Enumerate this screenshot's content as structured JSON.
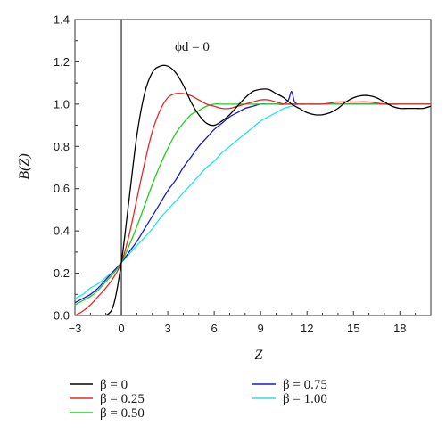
{
  "chart_data": {
    "type": "line",
    "title": "",
    "xlabel": "Z",
    "ylabel": "B(Z)",
    "xlim": [
      -3,
      20
    ],
    "ylim": [
      0,
      1.4
    ],
    "xticks": [
      "−3",
      "0",
      "3",
      "6",
      "9",
      "12",
      "15",
      "18"
    ],
    "yticks": [
      "0.0",
      "0.2",
      "0.4",
      "0.6",
      "0.8",
      "1.0",
      "1.2",
      "1.4"
    ],
    "annotation": "ϕd = 0",
    "vertical_line_x": 0,
    "grid": false,
    "legend_position": "bottom",
    "series": [
      {
        "name": "β = 0",
        "color": "#000000",
        "x": [
          -3,
          -2.5,
          -2,
          -1.5,
          -1,
          -0.5,
          0,
          0.5,
          1,
          1.5,
          2,
          2.5,
          3,
          3.5,
          4,
          4.5,
          5,
          5.5,
          6,
          6.5,
          7,
          7.5,
          8,
          8.5,
          9,
          9.5,
          10,
          10.5,
          11,
          11.5,
          12,
          12.5,
          13,
          13.5,
          14,
          14.5,
          15,
          15.5,
          16,
          16.5,
          17,
          17.5,
          18,
          18.5,
          19,
          19.5,
          20
        ],
        "y": [
          0.0,
          0.0,
          0.0,
          0.0,
          0.0,
          0.05,
          0.25,
          0.55,
          0.85,
          1.05,
          1.15,
          1.18,
          1.18,
          1.15,
          1.09,
          1.01,
          0.95,
          0.91,
          0.9,
          0.92,
          0.95,
          0.99,
          1.03,
          1.06,
          1.07,
          1.07,
          1.05,
          1.03,
          1.0,
          0.98,
          0.96,
          0.95,
          0.95,
          0.96,
          0.98,
          1.01,
          1.03,
          1.04,
          1.04,
          1.03,
          1.01,
          0.99,
          0.98,
          0.98,
          0.98,
          0.98,
          0.99
        ]
      },
      {
        "name": "β = 0.25",
        "color": "#e8262a",
        "x": [
          -3,
          -2.5,
          -2,
          -1.5,
          -1,
          -0.5,
          0,
          0.5,
          1,
          1.5,
          2,
          2.5,
          3,
          3.5,
          4,
          4.5,
          5,
          5.5,
          6,
          6.5,
          7,
          7.5,
          8,
          8.5,
          9,
          9.5,
          10,
          10.5,
          11,
          11.5,
          12,
          13,
          14,
          15,
          16,
          17,
          18,
          19,
          20
        ],
        "y": [
          0.0,
          0.02,
          0.05,
          0.09,
          0.13,
          0.18,
          0.25,
          0.38,
          0.55,
          0.72,
          0.87,
          0.97,
          1.03,
          1.05,
          1.05,
          1.04,
          1.02,
          1.0,
          0.99,
          0.98,
          0.98,
          0.99,
          1.0,
          1.01,
          1.02,
          1.02,
          1.01,
          1.0,
          1.0,
          1.0,
          1.0,
          1.0,
          1.01,
          1.01,
          1.01,
          1.0,
          1.0,
          1.0,
          1.0
        ]
      },
      {
        "name": "β = 0.50",
        "color": "#22cc22",
        "x": [
          -3,
          -2.5,
          -2,
          -1.5,
          -1,
          -0.5,
          0,
          0.5,
          1,
          1.5,
          2,
          2.5,
          3,
          3.5,
          4,
          4.5,
          5,
          5.5,
          6,
          6.5,
          7,
          7.5,
          8,
          9,
          10,
          11,
          12,
          14,
          16,
          18,
          20
        ],
        "y": [
          0.05,
          0.07,
          0.09,
          0.12,
          0.16,
          0.2,
          0.25,
          0.33,
          0.42,
          0.52,
          0.62,
          0.71,
          0.79,
          0.86,
          0.91,
          0.95,
          0.97,
          0.99,
          1.0,
          1.0,
          1.0,
          1.0,
          1.0,
          1.0,
          1.0,
          1.0,
          1.0,
          1.0,
          1.0,
          1.0,
          1.0
        ]
      },
      {
        "name": "β = 0.75",
        "color": "#1a1acc",
        "x": [
          -3,
          -2.5,
          -2,
          -1.5,
          -1,
          -0.5,
          0,
          0.5,
          1,
          1.5,
          2,
          2.5,
          3,
          3.5,
          4,
          4.5,
          5,
          5.5,
          6,
          6.5,
          7,
          7.5,
          8,
          8.5,
          9,
          9.5,
          10,
          10.5,
          10.8,
          11,
          11.2,
          11.5,
          12,
          13,
          14,
          16,
          18,
          20
        ],
        "y": [
          0.06,
          0.08,
          0.1,
          0.13,
          0.17,
          0.21,
          0.25,
          0.3,
          0.35,
          0.41,
          0.47,
          0.53,
          0.59,
          0.64,
          0.7,
          0.75,
          0.8,
          0.84,
          0.88,
          0.91,
          0.94,
          0.96,
          0.98,
          0.99,
          1.0,
          1.0,
          1.0,
          1.0,
          1.02,
          1.06,
          1.01,
          1.0,
          1.0,
          1.0,
          1.0,
          1.0,
          1.0,
          1.0
        ]
      },
      {
        "name": "β = 1.00",
        "color": "#22e6e6",
        "x": [
          -3,
          -2.5,
          -2,
          -1.5,
          -1,
          -0.5,
          0,
          0.5,
          1,
          1.5,
          2,
          2.5,
          3,
          3.5,
          4,
          4.5,
          5,
          5.5,
          6,
          6.5,
          7,
          7.5,
          8,
          8.5,
          9,
          9.5,
          10,
          10.5,
          11,
          11.5,
          12,
          14,
          16,
          18,
          20
        ],
        "y": [
          0.08,
          0.1,
          0.13,
          0.15,
          0.18,
          0.21,
          0.25,
          0.29,
          0.33,
          0.37,
          0.41,
          0.46,
          0.5,
          0.54,
          0.58,
          0.62,
          0.66,
          0.7,
          0.73,
          0.77,
          0.8,
          0.83,
          0.86,
          0.89,
          0.92,
          0.94,
          0.96,
          0.98,
          0.99,
          1.0,
          1.0,
          1.0,
          1.0,
          1.0,
          1.0
        ]
      }
    ]
  }
}
